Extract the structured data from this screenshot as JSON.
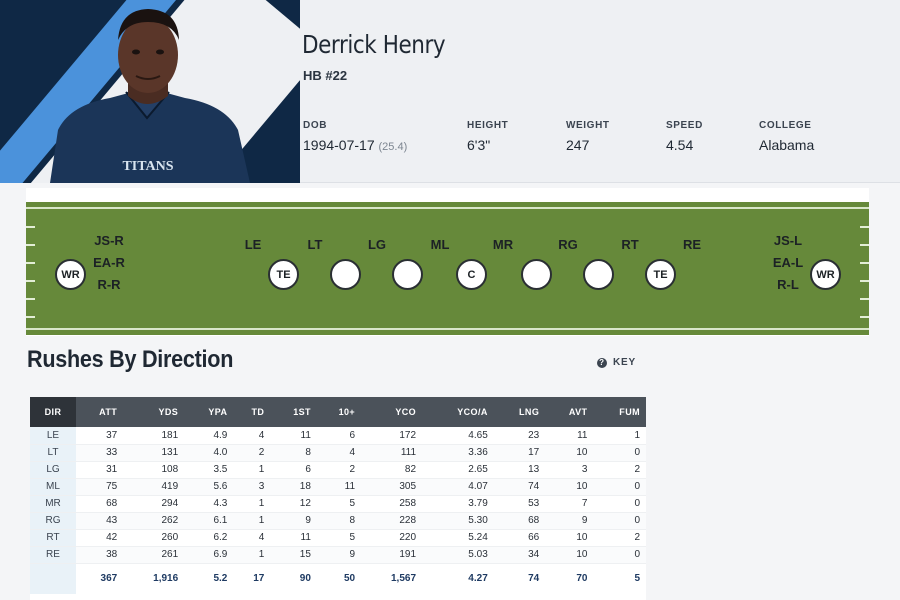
{
  "player": {
    "name": "Derrick Henry",
    "position": "HB #22",
    "jersey_text": "TITANS",
    "bio": [
      {
        "label": "DOB",
        "value": "1994-07-17",
        "extra": "(25.4)"
      },
      {
        "label": "HEIGHT",
        "value": "6'3\"",
        "extra": ""
      },
      {
        "label": "WEIGHT",
        "value": "247",
        "extra": ""
      },
      {
        "label": "SPEED",
        "value": "4.54",
        "extra": ""
      },
      {
        "label": "COLLEGE",
        "value": "Alabama",
        "extra": ""
      }
    ]
  },
  "field": {
    "gap_labels": [
      "LE",
      "LT",
      "LG",
      "ML",
      "MR",
      "RG",
      "RT",
      "RE"
    ],
    "left_labels": [
      "JS-R",
      "EA-R",
      "R-R"
    ],
    "right_labels": [
      "JS-L",
      "EA-L",
      "R-L"
    ],
    "players": [
      "WR",
      "TE",
      "",
      "",
      "C",
      "",
      "",
      "TE",
      "WR"
    ]
  },
  "section": {
    "title": "Rushes By Direction",
    "key_label": "KEY"
  },
  "table": {
    "columns": [
      "DIR",
      "ATT",
      "YDS",
      "YPA",
      "TD",
      "1ST",
      "10+",
      "YCO",
      "YCO/A",
      "LNG",
      "AVT",
      "FUM"
    ],
    "rows": [
      [
        "LE",
        "37",
        "181",
        "4.9",
        "4",
        "11",
        "6",
        "172",
        "4.65",
        "23",
        "11",
        "1"
      ],
      [
        "LT",
        "33",
        "131",
        "4.0",
        "2",
        "8",
        "4",
        "111",
        "3.36",
        "17",
        "10",
        "0"
      ],
      [
        "LG",
        "31",
        "108",
        "3.5",
        "1",
        "6",
        "2",
        "82",
        "2.65",
        "13",
        "3",
        "2"
      ],
      [
        "ML",
        "75",
        "419",
        "5.6",
        "3",
        "18",
        "11",
        "305",
        "4.07",
        "74",
        "10",
        "0"
      ],
      [
        "MR",
        "68",
        "294",
        "4.3",
        "1",
        "12",
        "5",
        "258",
        "3.79",
        "53",
        "7",
        "0"
      ],
      [
        "RG",
        "43",
        "262",
        "6.1",
        "1",
        "9",
        "8",
        "228",
        "5.30",
        "68",
        "9",
        "0"
      ],
      [
        "RT",
        "42",
        "260",
        "6.2",
        "4",
        "11",
        "5",
        "220",
        "5.24",
        "66",
        "10",
        "2"
      ],
      [
        "RE",
        "38",
        "261",
        "6.9",
        "1",
        "15",
        "9",
        "191",
        "5.03",
        "34",
        "10",
        "0"
      ]
    ],
    "totals": [
      "",
      "367",
      "1,916",
      "5.2",
      "17",
      "90",
      "50",
      "1,567",
      "4.27",
      "74",
      "70",
      "5"
    ]
  },
  "colors": {
    "navy": "#0f2845",
    "titans_blue": "#4b92db",
    "field_green": "#66893a",
    "header_dark": "#4b525a",
    "total_blue": "#1e3a62"
  }
}
